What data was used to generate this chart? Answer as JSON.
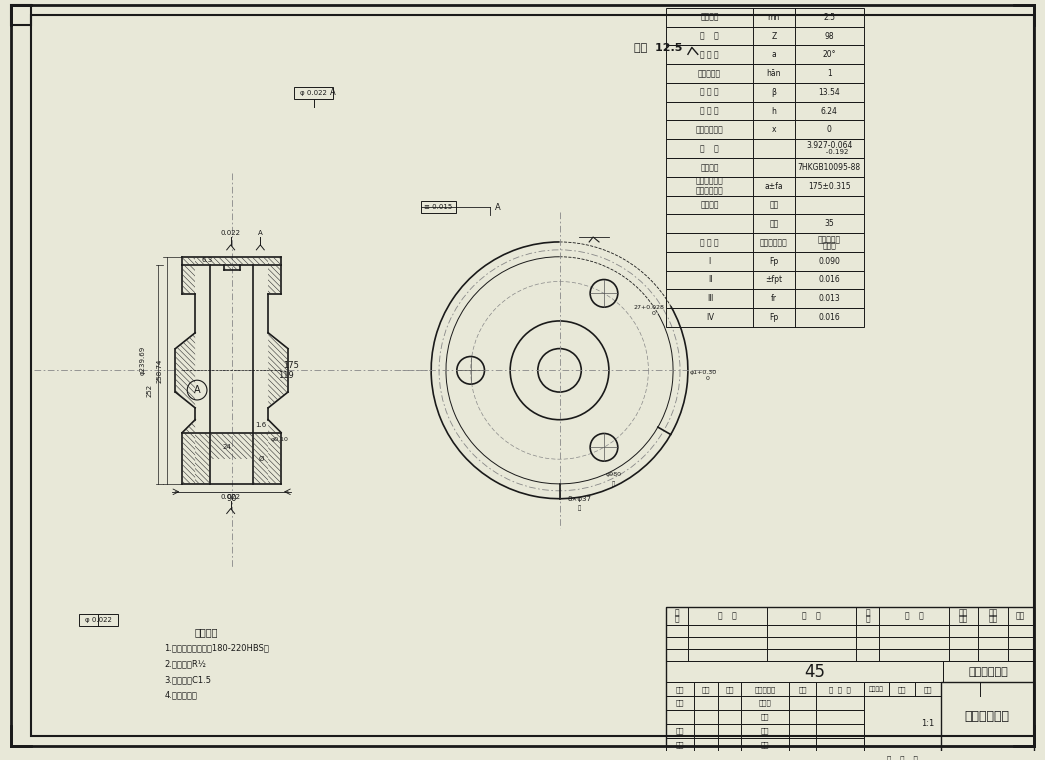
{
  "title": "低速级大齿轮",
  "bg_color": "#e8e8d8",
  "line_color": "#1a1a1a",
  "center_line_color": "#888888",
  "hatch_color": "#333333",
  "border_color": "#000000",
  "page_width": 10.45,
  "page_height": 7.6,
  "gear_table": {
    "rows": [
      [
        "法向模数",
        "mn",
        "2.5"
      ],
      [
        "齿    数",
        "Z",
        "98"
      ],
      [
        "齿 形 角",
        "a",
        "20°"
      ],
      [
        "齿顶高系数",
        "hān",
        "1"
      ],
      [
        "螺 旋 角",
        "β",
        "13.54"
      ],
      [
        "全 齿 高",
        "h",
        "6.24"
      ],
      [
        "径向变位系数",
        "x",
        "0"
      ],
      [
        "齿    厚",
        "",
        "3.927"
      ],
      [
        "精度等级",
        "",
        "7HKGB10095-88"
      ],
      [
        "齿轮副中心距\n及其极限偏差",
        "a±fa",
        "175±0.315"
      ],
      [
        "配对齿轮",
        "图号",
        ""
      ],
      [
        "",
        "齿数",
        "35"
      ]
    ],
    "tolerance_rows": [
      [
        "公 差 组",
        "检验项目代号",
        "公差或极限偏差值"
      ],
      [
        "Ⅰ",
        "Fp",
        "0.090"
      ],
      [
        "Ⅱ",
        "±fpt",
        "0.016"
      ],
      [
        "Ⅲ",
        "fr",
        "0.013"
      ],
      [
        "Ⅳ",
        "Fp",
        "0.016"
      ]
    ]
  },
  "title_block": {
    "material": "45",
    "name": "低速级大齿轮",
    "scale": "1:1",
    "rows": [
      [
        "标记",
        "处数",
        "分区",
        "更改文件号",
        "签名",
        "年月日"
      ],
      [
        "设计",
        "",
        "",
        "标准化",
        "",
        "",
        "阶段标记",
        "重量",
        "比例"
      ],
      [
        "",
        "",
        "",
        "审核",
        "",
        ""
      ],
      [
        "审核",
        "",
        "",
        "学号",
        "",
        "",
        "",
        "",
        "1:1"
      ],
      [
        "工艺",
        "",
        "",
        "批准",
        "",
        "",
        "共",
        "张",
        "第"
      ]
    ]
  },
  "notes": [
    "技术要求",
    "1.正火处理，硬度为180-220HBS；",
    "2.未注圆角R½",
    "3.未注倒角C1.5",
    "4.消除毛刺。"
  ],
  "surface_finish": "其余 12.5"
}
